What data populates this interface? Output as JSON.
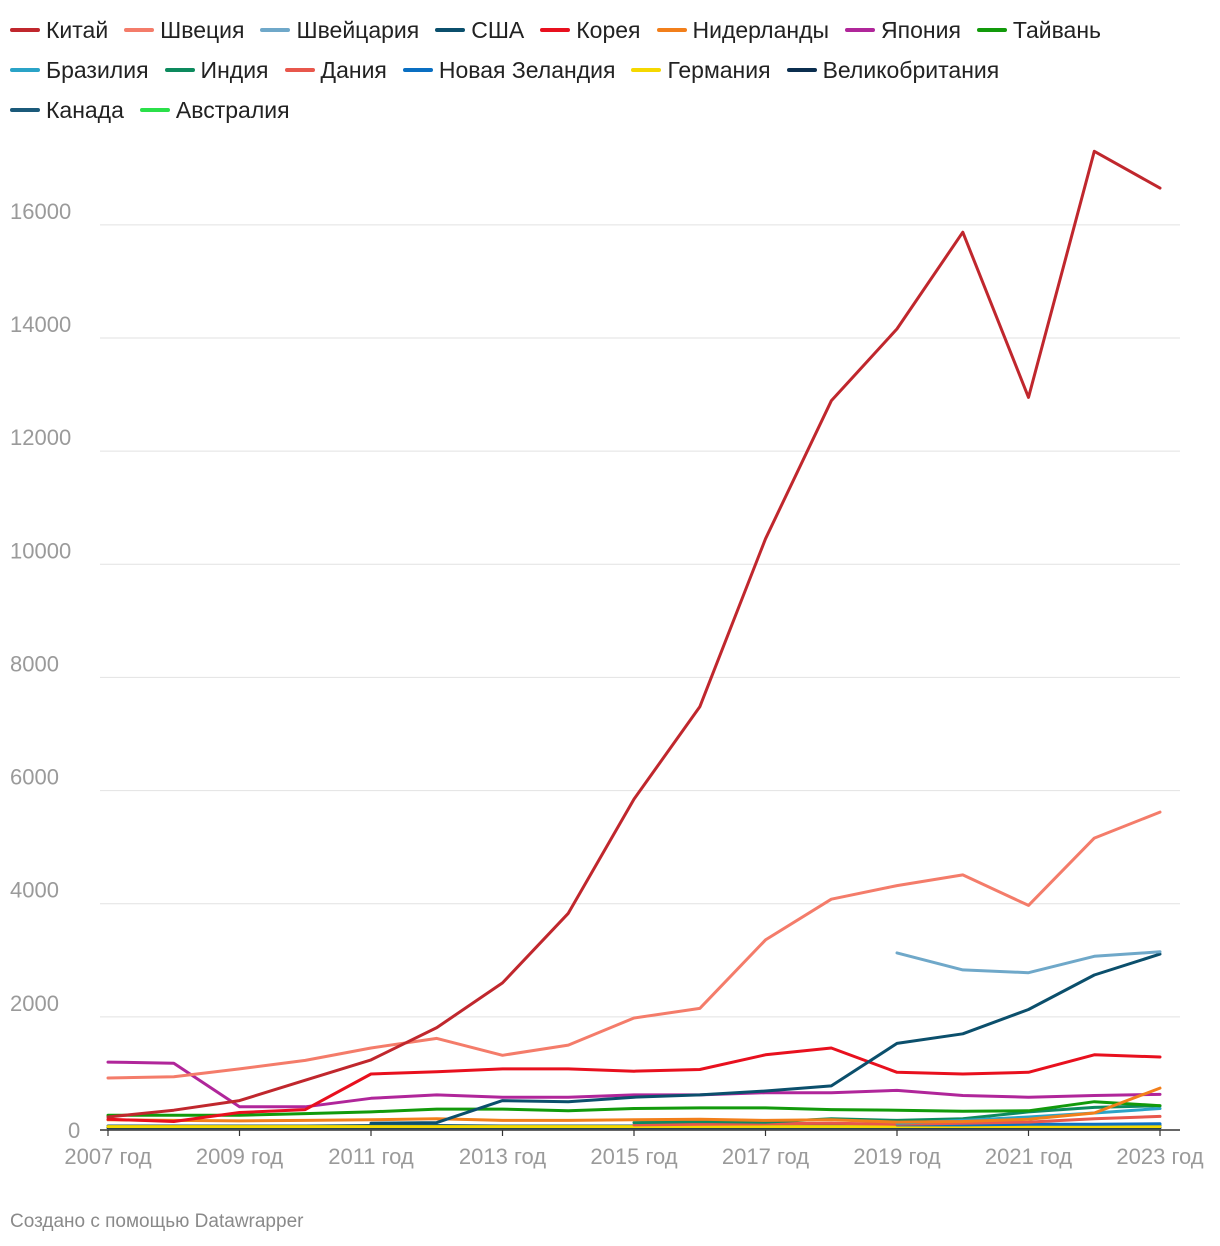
{
  "footer": "Создано с помощью Datawrapper",
  "chart_data": {
    "type": "line",
    "title": "",
    "xlabel": "",
    "ylabel": "",
    "x": [
      "2007 год",
      "2008 год",
      "2009 год",
      "2010 год",
      "2011 год",
      "2012 год",
      "2013 год",
      "2014 год",
      "2015 год",
      "2016 год",
      "2017 год",
      "2018 год",
      "2019 год",
      "2020 год",
      "2021 год",
      "2022 год",
      "2023 год"
    ],
    "x_tick_labels": [
      "2007 год",
      "2009 год",
      "2011 год",
      "2013 год",
      "2015 год",
      "2017 год",
      "2019 год",
      "2021 год",
      "2023 год"
    ],
    "ylim": [
      0,
      17500
    ],
    "y_ticks": [
      0,
      2000,
      4000,
      6000,
      8000,
      10000,
      12000,
      14000,
      16000
    ],
    "y_tick_labels": [
      "0",
      "2000",
      "4000",
      "6000",
      "8000",
      "10000",
      "12000",
      "14000",
      "16000"
    ],
    "grid": true,
    "legend_position": "top",
    "series": [
      {
        "name": "Китай",
        "color": "#c0272d",
        "values": [
          230,
          350,
          520,
          880,
          1240,
          1810,
          2600,
          3830,
          5850,
          7480,
          10450,
          12890,
          14160,
          15870,
          12950,
          17300,
          16650
        ]
      },
      {
        "name": "Швеция",
        "color": "#f47c6a",
        "values": [
          920,
          940,
          1080,
          1230,
          1450,
          1620,
          1320,
          1500,
          1980,
          2150,
          3360,
          4080,
          4320,
          4510,
          3970,
          5160,
          5620
        ]
      },
      {
        "name": "Швейцария",
        "color": "#6fa8c9",
        "values": [
          null,
          null,
          null,
          null,
          null,
          null,
          null,
          null,
          null,
          null,
          null,
          null,
          3130,
          2830,
          2780,
          3070,
          3150
        ]
      },
      {
        "name": "США",
        "color": "#0b4f6c",
        "values": [
          null,
          null,
          null,
          null,
          120,
          130,
          520,
          500,
          580,
          620,
          690,
          780,
          1530,
          1700,
          2130,
          2740,
          3110
        ]
      },
      {
        "name": "Корея",
        "color": "#e8101e",
        "values": [
          190,
          150,
          310,
          360,
          990,
          1030,
          1080,
          1080,
          1040,
          1070,
          1330,
          1450,
          1020,
          990,
          1020,
          1330,
          1290
        ]
      },
      {
        "name": "Нидерланды",
        "color": "#f27f1b",
        "values": [
          180,
          170,
          160,
          170,
          180,
          200,
          170,
          170,
          180,
          190,
          170,
          180,
          140,
          150,
          190,
          300,
          740
        ]
      },
      {
        "name": "Япония",
        "color": "#b0269a",
        "values": [
          1200,
          1180,
          410,
          410,
          560,
          620,
          580,
          580,
          620,
          620,
          660,
          660,
          700,
          610,
          580,
          610,
          630
        ]
      },
      {
        "name": "Тайвань",
        "color": "#129a0b",
        "values": [
          260,
          260,
          260,
          290,
          320,
          370,
          370,
          340,
          380,
          390,
          390,
          360,
          350,
          330,
          340,
          500,
          430
        ]
      },
      {
        "name": "Бразилия",
        "color": "#2aa3c7",
        "values": [
          null,
          null,
          null,
          null,
          null,
          null,
          null,
          null,
          null,
          null,
          null,
          null,
          120,
          170,
          230,
          300,
          380
        ]
      },
      {
        "name": "Индия",
        "color": "#0d8a5e",
        "values": [
          null,
          null,
          null,
          null,
          null,
          null,
          null,
          null,
          130,
          150,
          140,
          200,
          170,
          200,
          320,
          400,
          430
        ]
      },
      {
        "name": "Дания",
        "color": "#e8574c",
        "values": [
          null,
          null,
          null,
          null,
          null,
          null,
          null,
          null,
          90,
          100,
          110,
          120,
          100,
          120,
          140,
          200,
          240
        ]
      },
      {
        "name": "Новая Зеландия",
        "color": "#0a6fc2",
        "values": [
          null,
          null,
          null,
          null,
          null,
          null,
          null,
          null,
          null,
          null,
          null,
          null,
          90,
          90,
          100,
          100,
          110
        ]
      },
      {
        "name": "Германия",
        "color": "#f5d800",
        "values": [
          60,
          60,
          60,
          60,
          60,
          60,
          60,
          60,
          60,
          60,
          60,
          60,
          60,
          60,
          60,
          60,
          60
        ]
      },
      {
        "name": "Великобритания",
        "color": "#0b2e4f",
        "values": [
          40,
          40,
          40,
          40,
          40,
          40,
          40,
          40,
          40,
          40,
          40,
          40,
          40,
          40,
          40,
          40,
          40
        ]
      },
      {
        "name": "Канада",
        "color": "#1b5a7a",
        "values": [
          70,
          70,
          70,
          70,
          80,
          80,
          70,
          70,
          70,
          80,
          80,
          90,
          80,
          80,
          80,
          80,
          80
        ]
      },
      {
        "name": "Австралия",
        "color": "#2be04a",
        "values": [
          null,
          null,
          null,
          null,
          null,
          null,
          null,
          null,
          null,
          null,
          null,
          null,
          60,
          60,
          70,
          70,
          70
        ]
      }
    ]
  }
}
